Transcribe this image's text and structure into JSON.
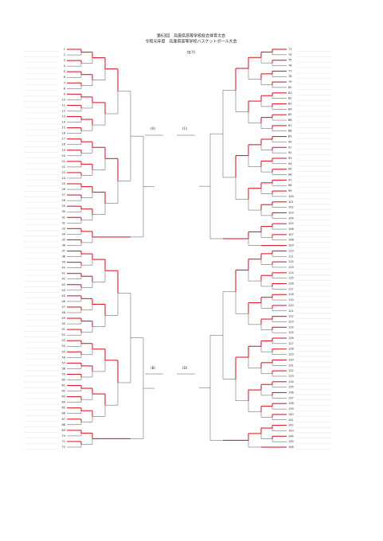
{
  "header": {
    "title": "第63回　兵庫県高等学校総合体育大会",
    "subtitle": "令和元年度　兵庫県高等学校バスケットボール大会",
    "division": "(女子)"
  },
  "blocks": {
    "a": "(A)",
    "b": "(B)",
    "c": "(C)",
    "d": "(D)"
  },
  "left": {
    "numbers": [
      1,
      2,
      3,
      4,
      5,
      6,
      7,
      8,
      9,
      10,
      11,
      12,
      13,
      14,
      15,
      16,
      17,
      18,
      19,
      20,
      21,
      22,
      23,
      24,
      25,
      26,
      27,
      28,
      29,
      30,
      31,
      32,
      33,
      34,
      35,
      36,
      37,
      38,
      39,
      40,
      41,
      42,
      43,
      44,
      45,
      46,
      47,
      48,
      49,
      50,
      51,
      52,
      53,
      54,
      55,
      56,
      57,
      58,
      59,
      60,
      61,
      62,
      63,
      64,
      65,
      66,
      67,
      68,
      69,
      70,
      71,
      72
    ]
  },
  "right": {
    "numbers": [
      73,
      74,
      75,
      76,
      77,
      78,
      79,
      80,
      81,
      82,
      83,
      84,
      85,
      86,
      87,
      88,
      89,
      90,
      91,
      92,
      93,
      94,
      95,
      96,
      97,
      98,
      99,
      100,
      101,
      102,
      103,
      104,
      105,
      106,
      107,
      108,
      109,
      110,
      111,
      112,
      113,
      114,
      115,
      116,
      117,
      118,
      119,
      120,
      121,
      122,
      123,
      124,
      125,
      126,
      127,
      128,
      129,
      130,
      131,
      132,
      133,
      134,
      135,
      136,
      137,
      138,
      139,
      140,
      141,
      142,
      143,
      144,
      145,
      146
    ]
  }
}
